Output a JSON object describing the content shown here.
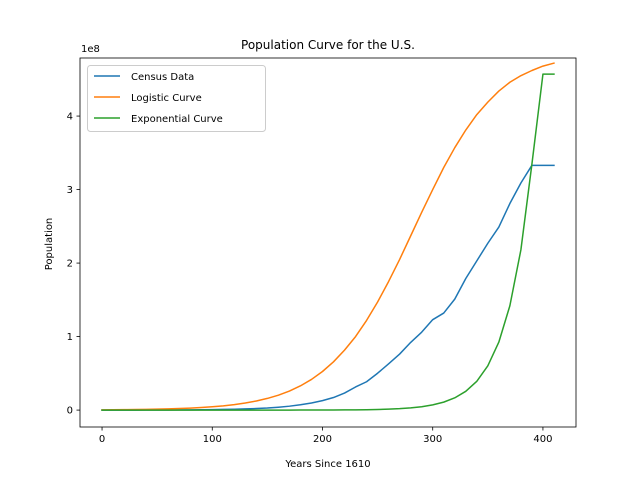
{
  "chart_data": {
    "type": "line",
    "title": "Population Curve for the U.S.",
    "xlabel": "Years Since 1610",
    "ylabel": "Population",
    "y_offset_label": "1e8",
    "xlim": [
      -20,
      430
    ],
    "ylim": [
      -0.23,
      4.79
    ],
    "x_ticks": [
      0,
      100,
      200,
      300,
      400
    ],
    "y_ticks": [
      0,
      1,
      2,
      3,
      4
    ],
    "grid": false,
    "legend_position": "top-left",
    "series": [
      {
        "name": "Census Data",
        "color": "#1f77b4",
        "x": [
          0,
          10,
          20,
          30,
          40,
          50,
          60,
          70,
          80,
          90,
          100,
          110,
          120,
          130,
          140,
          150,
          160,
          170,
          180,
          190,
          200,
          210,
          220,
          230,
          240,
          250,
          260,
          270,
          280,
          290,
          300,
          310,
          320,
          330,
          340,
          350,
          360,
          370,
          380,
          390,
          400,
          410
        ],
        "y": [
          3.5e-06,
          5e-05,
          3e-05,
          5e-05,
          0.0011,
          0.0015,
          0.0021,
          0.0025,
          0.0033,
          0.0047,
          0.0063,
          0.0091,
          0.0117,
          0.0159,
          0.0209,
          0.0279,
          0.0393,
          0.0531,
          0.0721,
          0.0964,
          0.1286,
          0.171,
          0.2319,
          0.3144,
          0.3856,
          0.5016,
          0.6295,
          0.7621,
          0.921,
          1.06,
          1.23,
          1.32,
          1.51,
          1.79,
          2.03,
          2.27,
          2.49,
          2.81,
          3.09,
          3.33,
          3.33,
          3.33
        ]
      },
      {
        "name": "Logistic Curve",
        "color": "#ff7f0e",
        "x": [
          0,
          10,
          20,
          30,
          40,
          50,
          60,
          70,
          80,
          90,
          100,
          110,
          120,
          130,
          140,
          150,
          160,
          170,
          180,
          190,
          200,
          210,
          220,
          230,
          240,
          250,
          260,
          270,
          280,
          290,
          300,
          310,
          320,
          330,
          340,
          350,
          360,
          370,
          380,
          390,
          400,
          410
        ],
        "y": [
          0.0035,
          0.0045,
          0.0058,
          0.0075,
          0.0097,
          0.0125,
          0.0162,
          0.0209,
          0.027,
          0.0349,
          0.045,
          0.0581,
          0.0749,
          0.0965,
          0.124,
          0.159,
          0.203,
          0.259,
          0.33,
          0.417,
          0.525,
          0.657,
          0.816,
          1.0,
          1.22,
          1.47,
          1.75,
          2.05,
          2.37,
          2.69,
          3.0,
          3.3,
          3.57,
          3.81,
          4.02,
          4.19,
          4.34,
          4.46,
          4.55,
          4.62,
          4.68,
          4.72
        ]
      },
      {
        "name": "Exponential Curve",
        "color": "#2ca02c",
        "x": [
          0,
          10,
          20,
          30,
          40,
          50,
          60,
          70,
          80,
          90,
          100,
          110,
          120,
          130,
          140,
          150,
          160,
          170,
          180,
          190,
          200,
          210,
          220,
          230,
          240,
          250,
          260,
          270,
          280,
          290,
          300,
          310,
          320,
          330,
          340,
          350,
          360,
          370,
          380,
          390,
          400,
          410
        ],
        "y": [
          0,
          0,
          0,
          0,
          0,
          0,
          0,
          0,
          0,
          0,
          0,
          0,
          0,
          0,
          0,
          0,
          0.0002,
          0.0003,
          0.0004,
          0.0006,
          0.001,
          0.0015,
          0.0023,
          0.0035,
          0.0054,
          0.0083,
          0.0127,
          0.0195,
          0.03,
          0.046,
          0.0706,
          0.1084,
          0.1664,
          0.2555,
          0.3923,
          0.6023,
          0.9247,
          1.4197,
          2.1797,
          3.3464,
          4.5699,
          4.5699
        ]
      }
    ]
  }
}
